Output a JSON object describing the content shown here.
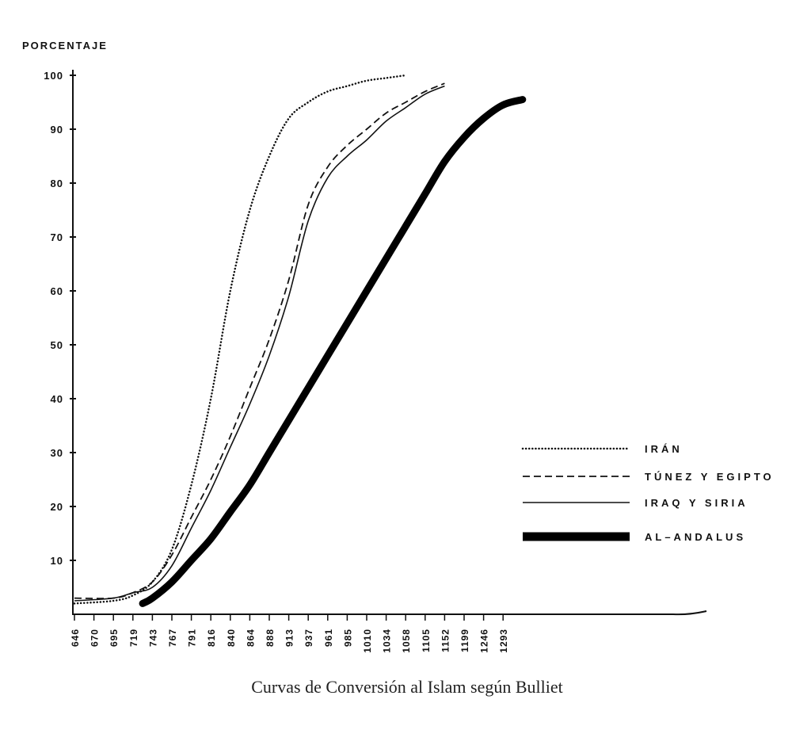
{
  "chart_data": {
    "type": "line",
    "ylabel": "PORCENTAJE",
    "xlabel": "",
    "title": "Curvas de Conversión al Islam según Bulliet",
    "categories": [
      "646",
      "670",
      "695",
      "719",
      "743",
      "767",
      "791",
      "816",
      "840",
      "864",
      "888",
      "913",
      "937",
      "961",
      "985",
      "1010",
      "1034",
      "1058",
      "1105",
      "1152",
      "1199",
      "1246",
      "1293"
    ],
    "yticks": [
      10,
      20,
      30,
      40,
      50,
      60,
      70,
      80,
      90,
      100
    ],
    "ylim": [
      0,
      100
    ],
    "legend_position": "right",
    "series": [
      {
        "name": "IRÁN",
        "style": "dotted",
        "points": [
          [
            0,
            2
          ],
          [
            2,
            2.5
          ],
          [
            3,
            3.5
          ],
          [
            4,
            6
          ],
          [
            5,
            12
          ],
          [
            6,
            24
          ],
          [
            7,
            40
          ],
          [
            8,
            60
          ],
          [
            9,
            75
          ],
          [
            10,
            85
          ],
          [
            11,
            92
          ],
          [
            12,
            95
          ],
          [
            13,
            97
          ],
          [
            14,
            98
          ],
          [
            15,
            99
          ],
          [
            16,
            99.5
          ],
          [
            17,
            100
          ]
        ]
      },
      {
        "name": "TÚNEZ Y EGIPTO",
        "style": "dashed",
        "points": [
          [
            0,
            3
          ],
          [
            2,
            3
          ],
          [
            3,
            4
          ],
          [
            4,
            6
          ],
          [
            5,
            11
          ],
          [
            6,
            18
          ],
          [
            7,
            25
          ],
          [
            8,
            33
          ],
          [
            9,
            42
          ],
          [
            10,
            51
          ],
          [
            11,
            62
          ],
          [
            12,
            76
          ],
          [
            13,
            83
          ],
          [
            14,
            87
          ],
          [
            15,
            90
          ],
          [
            16,
            93
          ],
          [
            17,
            95
          ],
          [
            18,
            97
          ],
          [
            19,
            98.5
          ]
        ]
      },
      {
        "name": "IRAQ Y SIRIA",
        "style": "solid",
        "points": [
          [
            0,
            2.5
          ],
          [
            2,
            3
          ],
          [
            3,
            4
          ],
          [
            4,
            5
          ],
          [
            5,
            9
          ],
          [
            6,
            16
          ],
          [
            7,
            23
          ],
          [
            8,
            31
          ],
          [
            9,
            39
          ],
          [
            10,
            48
          ],
          [
            11,
            59
          ],
          [
            12,
            73
          ],
          [
            13,
            81
          ],
          [
            14,
            85
          ],
          [
            15,
            88
          ],
          [
            16,
            91.5
          ],
          [
            17,
            94
          ],
          [
            18,
            96.5
          ],
          [
            19,
            98
          ]
        ]
      },
      {
        "name": "AL–ANDALUS",
        "style": "thick",
        "points": [
          [
            3.5,
            2
          ],
          [
            4,
            3
          ],
          [
            5,
            6
          ],
          [
            6,
            10
          ],
          [
            7,
            14
          ],
          [
            8,
            19
          ],
          [
            9,
            24
          ],
          [
            10,
            30
          ],
          [
            11,
            36
          ],
          [
            12,
            42
          ],
          [
            13,
            48
          ],
          [
            14,
            54
          ],
          [
            15,
            60
          ],
          [
            16,
            66
          ],
          [
            17,
            72
          ],
          [
            18,
            78
          ],
          [
            19,
            84
          ],
          [
            20,
            88.5
          ],
          [
            21,
            92
          ],
          [
            22,
            94.5
          ],
          [
            23,
            95.5
          ]
        ]
      }
    ]
  }
}
